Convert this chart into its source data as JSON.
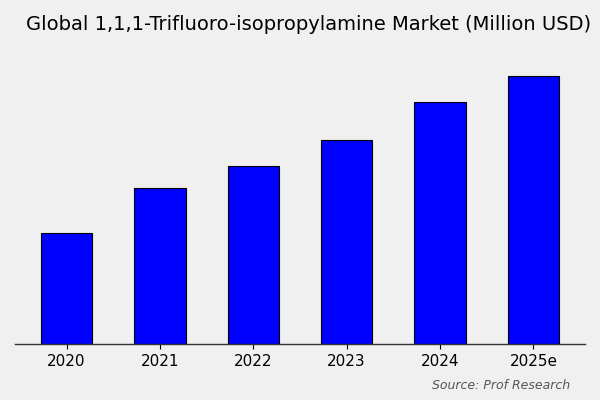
{
  "title": "Global 1,1,1-Trifluoro-isopropylamine Market (Million USD)",
  "categories": [
    "2020",
    "2021",
    "2022",
    "2023",
    "2024",
    "2025e"
  ],
  "values": [
    30,
    42,
    48,
    55,
    65,
    72
  ],
  "bar_color": "#0000FF",
  "bar_edgecolor": "#000000",
  "background_color": "#f0f0f0",
  "plot_bg_color": "#f0f0f0",
  "source_text": "Source: Prof Research",
  "title_fontsize": 14,
  "axis_fontsize": 11,
  "source_fontsize": 9,
  "ylim": [
    0,
    80
  ],
  "bar_width": 0.55
}
